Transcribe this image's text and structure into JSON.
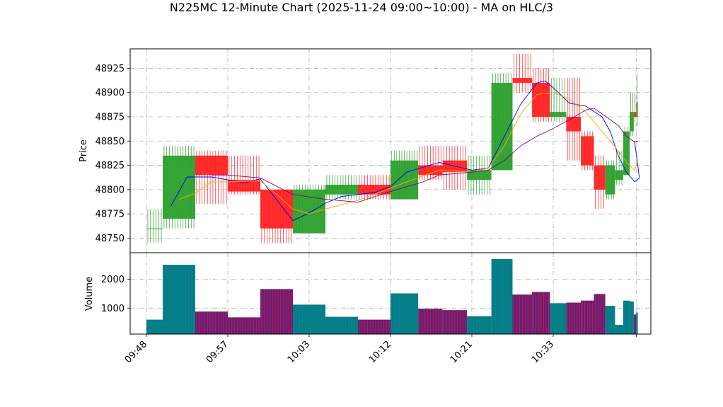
{
  "chart_data": {
    "type": "candlestick",
    "title": "N225MC 12-Minute Chart (2025-11-24 09:00~10:00) - MA on HLC/3",
    "price_panel": {
      "ylabel": "Price",
      "ylim": [
        48735,
        48945
      ],
      "yticks": [
        48750,
        48775,
        48800,
        48825,
        48850,
        48875,
        48900,
        48925
      ],
      "grid": true
    },
    "volume_panel": {
      "ylabel": "Volume",
      "ylim": [
        100,
        2920
      ],
      "yticks": [
        1000,
        2000
      ],
      "grid": true
    },
    "x_ticks": [
      {
        "label": "09:48",
        "pos": 0
      },
      {
        "label": "09:57",
        "pos": 5
      },
      {
        "label": "10:03",
        "pos": 10
      },
      {
        "label": "10:12",
        "pos": 15
      },
      {
        "label": "10:21",
        "pos": 20
      },
      {
        "label": "10:33",
        "pos": 25
      }
    ],
    "colors": {
      "up": "#2ca02c",
      "down": "#ff2222",
      "vol_up": "#008080",
      "vol_down": "#6a1c7a",
      "ma_fast": "#0000ff",
      "ma_mid": "#ffa500",
      "ma_slow": "#800080"
    },
    "candles": [
      {
        "x0": 0.0,
        "x1": 1.0,
        "open": 48760,
        "high": 48780,
        "low": 48745,
        "close": 48760,
        "volume": 600
      },
      {
        "x0": 1.0,
        "x1": 3.0,
        "open": 48770,
        "high": 48845,
        "low": 48760,
        "close": 48835,
        "volume": 2500
      },
      {
        "x0": 3.0,
        "x1": 5.0,
        "open": 48835,
        "high": 48840,
        "low": 48785,
        "close": 48815,
        "volume": 880
      },
      {
        "x0": 5.0,
        "x1": 7.0,
        "open": 48810,
        "high": 48835,
        "low": 48795,
        "close": 48798,
        "volume": 680
      },
      {
        "x0": 7.0,
        "x1": 9.0,
        "open": 48800,
        "high": 48800,
        "low": 48745,
        "close": 48760,
        "volume": 1660
      },
      {
        "x0": 9.0,
        "x1": 11.0,
        "open": 48755,
        "high": 48805,
        "low": 48755,
        "close": 48800,
        "volume": 1120
      },
      {
        "x0": 11.0,
        "x1": 13.0,
        "open": 48795,
        "high": 48815,
        "low": 48790,
        "close": 48805,
        "volume": 700
      },
      {
        "x0": 13.0,
        "x1": 15.0,
        "open": 48805,
        "high": 48815,
        "low": 48790,
        "close": 48795,
        "volume": 600
      },
      {
        "x0": 15.0,
        "x1": 16.7,
        "open": 48790,
        "high": 48840,
        "low": 48790,
        "close": 48830,
        "volume": 1510
      },
      {
        "x0": 16.7,
        "x1": 18.2,
        "open": 48825,
        "high": 48845,
        "low": 48810,
        "close": 48815,
        "volume": 980
      },
      {
        "x0": 18.2,
        "x1": 19.7,
        "open": 48830,
        "high": 48845,
        "low": 48800,
        "close": 48818,
        "volume": 930
      },
      {
        "x0": 19.7,
        "x1": 21.2,
        "open": 48810,
        "high": 48835,
        "low": 48795,
        "close": 48820,
        "volume": 720
      },
      {
        "x0": 21.2,
        "x1": 22.5,
        "open": 48820,
        "high": 48920,
        "low": 48820,
        "close": 48910,
        "volume": 2700
      },
      {
        "x0": 22.5,
        "x1": 23.7,
        "open": 48915,
        "high": 48940,
        "low": 48900,
        "close": 48910,
        "volume": 1470
      },
      {
        "x0": 23.7,
        "x1": 24.8,
        "open": 48910,
        "high": 48925,
        "low": 48870,
        "close": 48875,
        "volume": 1560
      },
      {
        "x0": 24.8,
        "x1": 25.8,
        "open": 48875,
        "high": 48915,
        "low": 48870,
        "close": 48880,
        "volume": 1170
      },
      {
        "x0": 25.8,
        "x1": 26.7,
        "open": 48875,
        "high": 48915,
        "low": 48830,
        "close": 48860,
        "volume": 1190
      },
      {
        "x0": 26.7,
        "x1": 27.5,
        "open": 48855,
        "high": 48860,
        "low": 48820,
        "close": 48825,
        "volume": 1260
      },
      {
        "x0": 27.5,
        "x1": 28.2,
        "open": 48825,
        "high": 48835,
        "low": 48780,
        "close": 48800,
        "volume": 1490
      },
      {
        "x0": 28.2,
        "x1": 28.8,
        "open": 48795,
        "high": 48830,
        "low": 48790,
        "close": 48825,
        "volume": 1080
      },
      {
        "x0": 28.8,
        "x1": 29.3,
        "open": 48810,
        "high": 48840,
        "low": 48805,
        "close": 48820,
        "volume": 420
      },
      {
        "x0": 29.3,
        "x1": 29.7,
        "open": 48815,
        "high": 48865,
        "low": 48815,
        "close": 48860,
        "volume": 1260
      },
      {
        "x0": 29.7,
        "x1": 29.95,
        "open": 48860,
        "high": 48900,
        "low": 48855,
        "close": 48880,
        "volume": 1230
      },
      {
        "x0": 29.95,
        "x1": 30.1,
        "open": 48880,
        "high": 48900,
        "low": 48870,
        "close": 48875,
        "volume": 780
      },
      {
        "x0": 30.1,
        "x1": 30.2,
        "open": 48875,
        "high": 48920,
        "low": 48865,
        "close": 48890,
        "volume": 850
      }
    ],
    "moving_averages": [
      {
        "key": "ma_fast",
        "points": [
          [
            1.5,
            48783
          ],
          [
            2.5,
            48813
          ],
          [
            4.0,
            48813
          ],
          [
            6.0,
            48807
          ],
          [
            7.0,
            48811
          ],
          [
            9.0,
            48768
          ],
          [
            10.0,
            48776
          ],
          [
            11.0,
            48786
          ],
          [
            12.0,
            48793
          ],
          [
            14.0,
            48797
          ],
          [
            15.0,
            48803
          ],
          [
            16.0,
            48818
          ],
          [
            18.0,
            48828
          ],
          [
            20.0,
            48820
          ],
          [
            21.0,
            48822
          ],
          [
            22.0,
            48855
          ],
          [
            23.0,
            48888
          ],
          [
            24.0,
            48910
          ],
          [
            24.5,
            48912
          ],
          [
            25.0,
            48905
          ],
          [
            26.0,
            48889
          ],
          [
            27.0,
            48886
          ],
          [
            28.0,
            48875
          ],
          [
            28.5,
            48860
          ],
          [
            29.0,
            48835
          ],
          [
            29.5,
            48818
          ],
          [
            30.0,
            48808
          ],
          [
            30.3,
            48812
          ],
          [
            30.0,
            48850
          ]
        ]
      },
      {
        "key": "ma_mid",
        "points": [
          [
            2.0,
            48790
          ],
          [
            3.0,
            48796
          ],
          [
            4.0,
            48808
          ],
          [
            5.0,
            48808
          ],
          [
            7.0,
            48809
          ],
          [
            8.0,
            48795
          ],
          [
            9.0,
            48780
          ],
          [
            10.0,
            48775
          ],
          [
            11.0,
            48780
          ],
          [
            13.0,
            48789
          ],
          [
            14.0,
            48795
          ],
          [
            16.0,
            48808
          ],
          [
            18.0,
            48820
          ],
          [
            20.0,
            48818
          ],
          [
            21.0,
            48822
          ],
          [
            22.0,
            48845
          ],
          [
            23.0,
            48878
          ],
          [
            24.0,
            48898
          ],
          [
            25.0,
            48900
          ],
          [
            26.0,
            48893
          ],
          [
            27.0,
            48880
          ],
          [
            28.0,
            48860
          ],
          [
            29.0,
            48840
          ],
          [
            29.5,
            48828
          ],
          [
            30.0,
            48820
          ],
          [
            30.2,
            48830
          ]
        ]
      },
      {
        "key": "ma_slow",
        "points": [
          [
            4.0,
            48815
          ],
          [
            5.0,
            48815
          ],
          [
            7.0,
            48812
          ],
          [
            9.0,
            48795
          ],
          [
            11.0,
            48790
          ],
          [
            13.0,
            48787
          ],
          [
            15.0,
            48798
          ],
          [
            17.0,
            48808
          ],
          [
            18.0,
            48815
          ],
          [
            20.0,
            48818
          ],
          [
            21.0,
            48820
          ],
          [
            22.0,
            48830
          ],
          [
            23.0,
            48845
          ],
          [
            24.0,
            48855
          ],
          [
            25.0,
            48863
          ],
          [
            26.0,
            48872
          ],
          [
            27.0,
            48882
          ],
          [
            27.5,
            48884
          ],
          [
            28.0,
            48878
          ],
          [
            29.0,
            48866
          ],
          [
            29.5,
            48855
          ],
          [
            30.0,
            48849
          ],
          [
            30.2,
            48850
          ]
        ]
      }
    ]
  }
}
